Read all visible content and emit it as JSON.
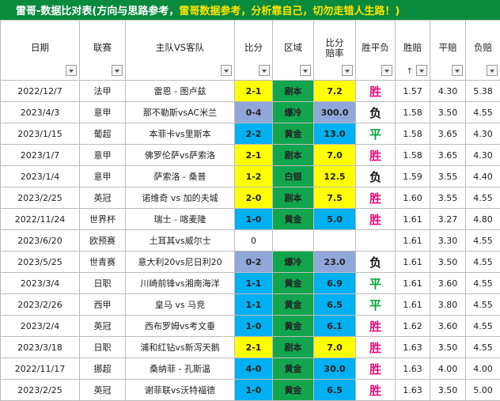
{
  "banner": {
    "part1": "雷哥-数据比对表(方向与思路参考，",
    "part2": "雷哥数据参考，分析靠自己，切勿走错人生路！)"
  },
  "headers": [
    "日期",
    "联赛",
    "主队VS客队",
    "比分",
    "区域",
    "比分赔率",
    "胜平负",
    "胜赔",
    "平赔",
    "负赔"
  ],
  "colors": {
    "banner_bg": "#0a8a3c",
    "yellow": "#ffff00",
    "blue": "#00b0f0",
    "purple": "#8fa7d9",
    "green": "#12a54d",
    "red_text": "#d11c1c",
    "win": "#e8117a",
    "draw": "#0aa043",
    "lose": "#111111"
  },
  "rows": [
    {
      "date": "2022/12/7",
      "league": "法甲",
      "match": "雷恩 - 图卢兹",
      "score": "2-1",
      "zone": "剧本",
      "ratio": "7.2",
      "result": "胜",
      "w": "1.57",
      "d": "4.30",
      "l": "5.38",
      "color": "yellow",
      "rcolor": "win"
    },
    {
      "date": "2023/4/3",
      "league": "意甲",
      "match": "那不勒斯vsAC米兰",
      "score": "0-4",
      "zone": "爆冷",
      "ratio": "300.0",
      "result": "负",
      "w": "1.58",
      "d": "3.50",
      "l": "4.55",
      "color": "purple",
      "rcolor": "lose"
    },
    {
      "date": "2023/1/15",
      "league": "葡超",
      "match": "本菲卡vs里斯本",
      "score": "2-2",
      "zone": "黄金",
      "ratio": "13.0",
      "result": "平",
      "w": "1.58",
      "d": "3.65",
      "l": "4.30",
      "color": "blue",
      "rcolor": "draw"
    },
    {
      "date": "2023/1/7",
      "league": "意甲",
      "match": "佛罗伦萨vs萨索洛",
      "score": "2-1",
      "zone": "剧本",
      "ratio": "7.0",
      "result": "胜",
      "w": "1.58",
      "d": "3.65",
      "l": "4.30",
      "color": "yellow",
      "rcolor": "win"
    },
    {
      "date": "2023/1/4",
      "league": "意甲",
      "match": "萨索洛 - 桑普",
      "score": "1-2",
      "zone": "白银",
      "ratio": "12.5",
      "result": "负",
      "w": "1.59",
      "d": "3.55",
      "l": "4.40",
      "color": "yellow",
      "rcolor": "lose"
    },
    {
      "date": "2023/2/25",
      "league": "英冠",
      "match": "诺维奇 vs 加的夫城",
      "score": "2-0",
      "zone": "剧本",
      "ratio": "7.5",
      "result": "胜",
      "w": "1.60",
      "d": "3.55",
      "l": "4.55",
      "color": "yellow",
      "rcolor": "win"
    },
    {
      "date": "2022/11/24",
      "league": "世界杯",
      "match": "瑞士 - 喀麦隆",
      "score": "1-0",
      "zone": "黄金",
      "ratio": "5.0",
      "result": "胜",
      "w": "1.61",
      "d": "3.27",
      "l": "4.80",
      "color": "blue",
      "rcolor": "win"
    },
    {
      "date": "2023/6/20",
      "league": "欧预赛",
      "match": "土耳其vs威尔士",
      "score": "0",
      "zone": "",
      "ratio": "",
      "result": "",
      "w": "1.61",
      "d": "3.30",
      "l": "4.55",
      "color": "none",
      "rcolor": "lose"
    },
    {
      "date": "2023/5/25",
      "league": "世青赛",
      "match": "意大利20vs尼日利20",
      "score": "0-2",
      "zone": "爆冷",
      "ratio": "23.0",
      "result": "负",
      "w": "1.61",
      "d": "3.50",
      "l": "4.55",
      "color": "purple",
      "rcolor": "lose"
    },
    {
      "date": "2023/3/4",
      "league": "日职",
      "match": "川崎前锋vs湘南海洋",
      "score": "1-1",
      "zone": "黄金",
      "ratio": "6.9",
      "result": "平",
      "w": "1.61",
      "d": "3.60",
      "l": "4.55",
      "color": "blue",
      "rcolor": "draw"
    },
    {
      "date": "2023/2/26",
      "league": "西甲",
      "match": "皇马 vs 马竞",
      "score": "1-1",
      "zone": "黄金",
      "ratio": "6.5",
      "result": "平",
      "w": "1.61",
      "d": "3.80",
      "l": "4.55",
      "color": "blue",
      "rcolor": "draw"
    },
    {
      "date": "2023/2/4",
      "league": "英冠",
      "match": "西布罗姆vs考文垂",
      "score": "1-0",
      "zone": "黄金",
      "ratio": "6.1",
      "result": "胜",
      "w": "1.62",
      "d": "3.60",
      "l": "4.55",
      "color": "blue",
      "rcolor": "win"
    },
    {
      "date": "2023/3/18",
      "league": "日职",
      "match": "浦和红钻vs新泻天鹅",
      "score": "2-1",
      "zone": "剧本",
      "ratio": "7.0",
      "result": "胜",
      "w": "1.63",
      "d": "3.50",
      "l": "4.55",
      "color": "yellow",
      "rcolor": "win"
    },
    {
      "date": "2022/11/17",
      "league": "挪超",
      "match": "桑纳菲 - 孔斯温",
      "score": "4-0",
      "zone": "黄金",
      "ratio": "30.0",
      "result": "胜",
      "w": "1.63",
      "d": "4.00",
      "l": "4.00",
      "color": "blue",
      "rcolor": "win"
    },
    {
      "date": "2023/2/25",
      "league": "英冠",
      "match": "谢菲联vs沃特福德",
      "score": "1-0",
      "zone": "黄金",
      "ratio": "6.5",
      "result": "胜",
      "w": "1.63",
      "d": "3.50",
      "l": "5.00",
      "color": "blue",
      "rcolor": "win"
    }
  ]
}
